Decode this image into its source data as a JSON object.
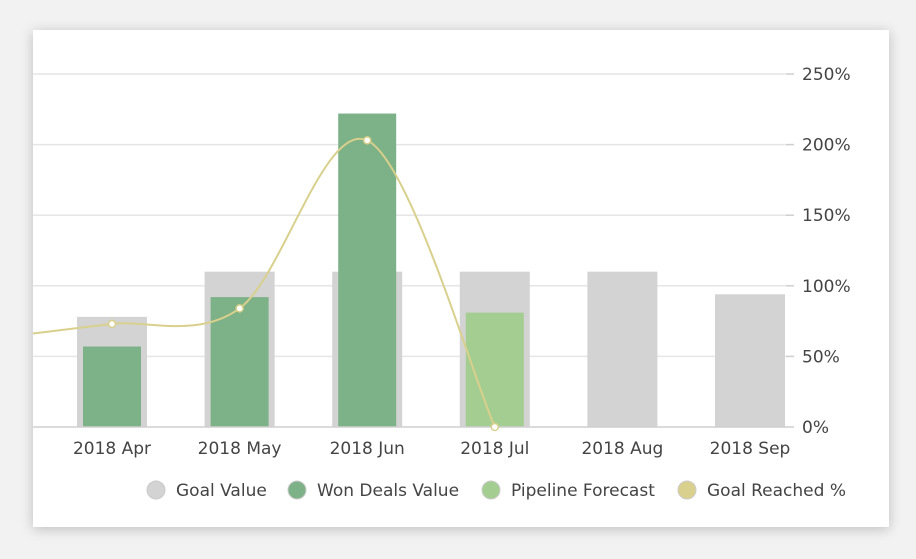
{
  "chart_data": {
    "type": "bar",
    "categories": [
      "2018 Apr",
      "2018 May",
      "2018 Jun",
      "2018 Jul",
      "2018 Aug",
      "2018 Sep"
    ],
    "series": [
      {
        "name": "Goal Value",
        "kind": "bar",
        "color": "#d3d3d3",
        "values": [
          78,
          110,
          110,
          110,
          110,
          94
        ]
      },
      {
        "name": "Won Deals Value",
        "kind": "bar",
        "color": "#7db187",
        "values": [
          57,
          92,
          222,
          0,
          0,
          0
        ]
      },
      {
        "name": "Pipeline Forecast",
        "kind": "bar",
        "color": "#a4cd91",
        "values": [
          0,
          0,
          0,
          81,
          0,
          0
        ]
      },
      {
        "name": "Goal Reached %",
        "kind": "line",
        "color": "#d8d08c",
        "values": [
          73,
          84,
          203,
          0,
          null,
          null
        ]
      }
    ],
    "y_ticks": [
      "0%",
      "50%",
      "100%",
      "150%",
      "200%",
      "250%"
    ],
    "ylim": [
      0,
      250
    ],
    "grid": true,
    "legend_position": "bottom-right"
  }
}
